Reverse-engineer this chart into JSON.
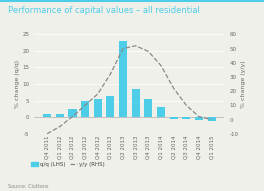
{
  "title": "Performance of capital values – all residential",
  "categories": [
    "Q4 2011",
    "Q1 2012",
    "Q2 2012",
    "Q3 2012",
    "Q4 2012",
    "Q1 2013",
    "Q2 2013",
    "Q3 2013",
    "Q4 2013",
    "Q1 2014",
    "Q2 2014",
    "Q3 2014",
    "Q4 2014",
    "Q1 2015"
  ],
  "qq_values": [
    1.0,
    1.0,
    2.5,
    5.0,
    5.5,
    6.5,
    23.0,
    8.5,
    5.5,
    3.0,
    -0.5,
    -0.5,
    -1.0,
    -1.2
  ],
  "yy_values": [
    -10,
    -5,
    2,
    10,
    18,
    32,
    50,
    52,
    48,
    38,
    22,
    10,
    2,
    0
  ],
  "bar_color": "#4ecde8",
  "line_color": "#888888",
  "lhs_ylim": [
    -5,
    25
  ],
  "rhs_ylim": [
    -10,
    60
  ],
  "lhs_yticks": [
    -5,
    0,
    5,
    10,
    15,
    20,
    25
  ],
  "rhs_yticks": [
    -10,
    0,
    10,
    20,
    30,
    40,
    50,
    60
  ],
  "ylabel_left": "% change (q/q)",
  "ylabel_right": "% change (y/y)",
  "source": "Source: Cluttons",
  "legend_bar": "q/q (LHS)",
  "legend_line": "y/y (RHS)",
  "background_color": "#f0f0eb",
  "title_color": "#4ecde8",
  "title_fontsize": 6.0,
  "axis_fontsize": 4.5,
  "tick_fontsize": 4.0
}
